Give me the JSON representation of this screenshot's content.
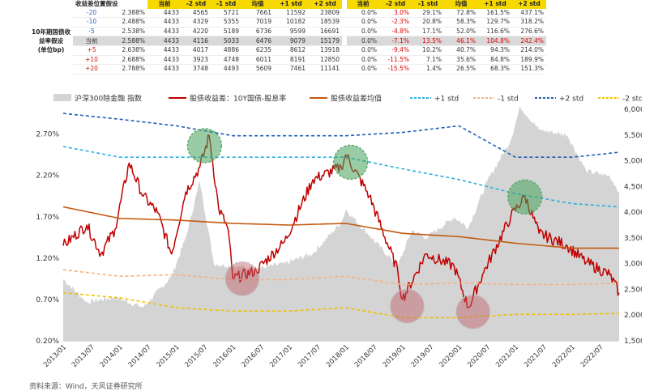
{
  "table": {
    "header_label": "收益差位置假设",
    "side_label": [
      "10年期国债收",
      "益率假设",
      "(单位bp)"
    ],
    "columns": [
      "当前",
      "-2 std",
      "-1 std",
      "均值",
      "+1 std",
      "+2 std",
      "当前",
      "-2 std",
      "-1 std",
      "均值",
      "+1 std",
      "+2 std"
    ],
    "rows": [
      {
        "shift": "-20",
        "yield": "2.388%",
        "levels": [
          "4433",
          "4565",
          "5721",
          "7661",
          "11592",
          "23809"
        ],
        "returns": [
          "0.0%",
          "3.0%",
          "29.1%",
          "72.8%",
          "161.5%",
          "437.1%"
        ]
      },
      {
        "shift": "-10",
        "yield": "2.488%",
        "levels": [
          "4433",
          "4329",
          "5355",
          "7019",
          "10182",
          "18539"
        ],
        "returns": [
          "0.0%",
          "-2.3%",
          "20.8%",
          "58.3%",
          "129.7%",
          "318.2%"
        ]
      },
      {
        "shift": "-5",
        "yield": "2.538%",
        "levels": [
          "4433",
          "4220",
          "5189",
          "6736",
          "9599",
          "16691"
        ],
        "returns": [
          "0.0%",
          "-4.8%",
          "17.1%",
          "52.0%",
          "116.6%",
          "276.6%"
        ]
      },
      {
        "shift": "当前",
        "yield": "2.588%",
        "levels": [
          "4433",
          "4116",
          "5033",
          "6476",
          "9079",
          "15179"
        ],
        "returns": [
          "0.0%",
          "-7.1%",
          "13.5%",
          "46.1%",
          "104.8%",
          "242.4%"
        ]
      },
      {
        "shift": "+5",
        "yield": "2.638%",
        "levels": [
          "4433",
          "4017",
          "4886",
          "6235",
          "8612",
          "13918"
        ],
        "returns": [
          "0.0%",
          "-9.4%",
          "10.2%",
          "40.7%",
          "94.3%",
          "214.0%"
        ]
      },
      {
        "shift": "+10",
        "yield": "2.688%",
        "levels": [
          "4433",
          "3923",
          "4748",
          "6011",
          "8191",
          "12850"
        ],
        "returns": [
          "0.0%",
          "-11.5%",
          "7.1%",
          "35.6%",
          "84.8%",
          "189.9%"
        ]
      },
      {
        "shift": "+20",
        "yield": "2.788%",
        "levels": [
          "4433",
          "3748",
          "4493",
          "5609",
          "7461",
          "11141"
        ],
        "returns": [
          "0.0%",
          "-15.5%",
          "1.4%",
          "26.5%",
          "68.3%",
          "151.3%"
        ]
      }
    ]
  },
  "chart_data": {
    "type": "line",
    "series": [
      {
        "name": "沪深300除金融 指数",
        "kind": "area",
        "axis": "right",
        "color": "#d4d4d4",
        "points": [
          [
            "2013-01",
            2700
          ],
          [
            "2013-06",
            2250
          ],
          [
            "2013-12",
            2350
          ],
          [
            "2014-06",
            2150
          ],
          [
            "2014-12",
            2750
          ],
          [
            "2015-03",
            3500
          ],
          [
            "2015-06",
            4600
          ],
          [
            "2015-09",
            3000
          ],
          [
            "2016-01",
            2950
          ],
          [
            "2016-06",
            2900
          ],
          [
            "2016-12",
            3000
          ],
          [
            "2017-06",
            3200
          ],
          [
            "2017-12",
            3800
          ],
          [
            "2018-01",
            4050
          ],
          [
            "2018-06",
            3550
          ],
          [
            "2018-12",
            2950
          ],
          [
            "2019-03",
            3650
          ],
          [
            "2019-06",
            3500
          ],
          [
            "2019-12",
            3900
          ],
          [
            "2020-03",
            3700
          ],
          [
            "2020-07",
            4600
          ],
          [
            "2020-12",
            5400
          ],
          [
            "2021-02",
            6050
          ],
          [
            "2021-06",
            5600
          ],
          [
            "2021-12",
            5500
          ],
          [
            "2022-04",
            4800
          ],
          [
            "2022-09",
            4700
          ],
          [
            "2022-11",
            4400
          ]
        ]
      },
      {
        "name": "股债收益差：10Y国债-股息率",
        "kind": "line",
        "axis": "left",
        "color": "#c00000",
        "points": [
          [
            "2013-01",
            1.35
          ],
          [
            "2013-06",
            1.6
          ],
          [
            "2013-09",
            1.25
          ],
          [
            "2013-12",
            1.55
          ],
          [
            "2014-03",
            2.35
          ],
          [
            "2014-06",
            1.95
          ],
          [
            "2014-09",
            1.75
          ],
          [
            "2014-12",
            1.25
          ],
          [
            "2015-03",
            2.0
          ],
          [
            "2015-06",
            2.3
          ],
          [
            "2015-08",
            2.68
          ],
          [
            "2015-10",
            1.8
          ],
          [
            "2015-12",
            1.55
          ],
          [
            "2016-01",
            0.95
          ],
          [
            "2016-06",
            1.05
          ],
          [
            "2016-12",
            1.4
          ],
          [
            "2017-06",
            2.15
          ],
          [
            "2017-12",
            2.3
          ],
          [
            "2018-01",
            2.45
          ],
          [
            "2018-06",
            1.95
          ],
          [
            "2018-12",
            1.05
          ],
          [
            "2019-01",
            0.7
          ],
          [
            "2019-06",
            1.25
          ],
          [
            "2019-12",
            1.1
          ],
          [
            "2020-03",
            0.6
          ],
          [
            "2020-06",
            1.0
          ],
          [
            "2020-12",
            1.7
          ],
          [
            "2021-03",
            1.95
          ],
          [
            "2021-06",
            1.5
          ],
          [
            "2021-12",
            1.35
          ],
          [
            "2022-04",
            1.15
          ],
          [
            "2022-09",
            1.0
          ],
          [
            "2022-11",
            0.78
          ]
        ]
      },
      {
        "name": "股债收益差均值",
        "kind": "line",
        "axis": "left",
        "color": "#c55a11",
        "points": [
          [
            "2013-01",
            1.82
          ],
          [
            "2014-01",
            1.68
          ],
          [
            "2015-01",
            1.66
          ],
          [
            "2016-01",
            1.62
          ],
          [
            "2017-01",
            1.6
          ],
          [
            "2018-01",
            1.62
          ],
          [
            "2019-01",
            1.5
          ],
          [
            "2020-01",
            1.46
          ],
          [
            "2021-01",
            1.38
          ],
          [
            "2022-01",
            1.32
          ],
          [
            "2022-11",
            1.32
          ]
        ]
      },
      {
        "name": "+1 std",
        "kind": "dashed",
        "axis": "left",
        "color": "#2ab0e0",
        "points": [
          [
            "2013-01",
            2.55
          ],
          [
            "2014-01",
            2.42
          ],
          [
            "2015-01",
            2.42
          ],
          [
            "2016-01",
            2.42
          ],
          [
            "2017-01",
            2.42
          ],
          [
            "2018-01",
            2.42
          ],
          [
            "2019-01",
            2.28
          ],
          [
            "2020-01",
            2.15
          ],
          [
            "2021-01",
            1.98
          ],
          [
            "2022-01",
            1.86
          ],
          [
            "2022-11",
            1.82
          ]
        ]
      },
      {
        "name": "-1 std",
        "kind": "dashed",
        "axis": "left",
        "color": "#f4b183",
        "points": [
          [
            "2013-01",
            1.06
          ],
          [
            "2014-01",
            0.98
          ],
          [
            "2015-01",
            1.0
          ],
          [
            "2016-01",
            0.94
          ],
          [
            "2017-01",
            0.94
          ],
          [
            "2018-01",
            0.98
          ],
          [
            "2019-01",
            0.88
          ],
          [
            "2020-01",
            0.9
          ],
          [
            "2021-01",
            0.88
          ],
          [
            "2022-01",
            0.88
          ],
          [
            "2022-11",
            0.9
          ]
        ]
      },
      {
        "name": "+2 std",
        "kind": "dashed",
        "axis": "left",
        "color": "#1f5fb4",
        "points": [
          [
            "2013-01",
            2.95
          ],
          [
            "2014-01",
            2.88
          ],
          [
            "2015-01",
            2.8
          ],
          [
            "2016-01",
            2.68
          ],
          [
            "2017-01",
            2.68
          ],
          [
            "2018-01",
            2.68
          ],
          [
            "2019-01",
            2.72
          ],
          [
            "2020-01",
            2.8
          ],
          [
            "2021-01",
            2.42
          ],
          [
            "2022-01",
            2.42
          ],
          [
            "2022-11",
            2.48
          ]
        ]
      },
      {
        "name": "-2 std",
        "kind": "dashed",
        "axis": "left",
        "color": "#f0c000",
        "points": [
          [
            "2013-01",
            0.78
          ],
          [
            "2014-01",
            0.72
          ],
          [
            "2015-01",
            0.6
          ],
          [
            "2016-01",
            0.56
          ],
          [
            "2017-01",
            0.56
          ],
          [
            "2018-01",
            0.6
          ],
          [
            "2019-01",
            0.48
          ],
          [
            "2020-01",
            0.48
          ],
          [
            "2021-01",
            0.52
          ],
          [
            "2022-01",
            0.52
          ],
          [
            "2022-11",
            0.53
          ]
        ]
      }
    ],
    "highlights": [
      {
        "kind": "top",
        "date": "2015-07",
        "value": 2.56
      },
      {
        "kind": "top",
        "date": "2018-02",
        "value": 2.36
      },
      {
        "kind": "top",
        "date": "2021-03",
        "value": 1.94
      },
      {
        "kind": "bottom",
        "date": "2016-03",
        "value": 0.95
      },
      {
        "kind": "bottom",
        "date": "2019-02",
        "value": 0.62
      },
      {
        "kind": "bottom",
        "date": "2020-04",
        "value": 0.55
      }
    ],
    "left_ticks": [
      "0.20%",
      "0.70%",
      "1.20%",
      "1.70%",
      "2.20%",
      "2.70%"
    ],
    "left_tick_values": [
      0.2,
      0.7,
      1.2,
      1.7,
      2.2,
      2.7
    ],
    "right_ticks": [
      "1,500",
      "2,000",
      "2,500",
      "3,000",
      "3,500",
      "4,000",
      "4,500",
      "5,000",
      "5,500",
      "6,000"
    ],
    "right_tick_values": [
      1500,
      2000,
      2500,
      3000,
      3500,
      4000,
      4500,
      5000,
      5500,
      6000
    ],
    "x_ticks": [
      "2013/01",
      "2013/07",
      "2014/01",
      "2014/07",
      "2015/01",
      "2015/07",
      "2016/01",
      "2016/07",
      "2017/01",
      "2017/07",
      "2018/01",
      "2018/07",
      "2019/01",
      "2019/07",
      "2020/01",
      "2020/07",
      "2021/01",
      "2021/07",
      "2022/01",
      "2022/07"
    ],
    "left_range": [
      0.2,
      3.0
    ],
    "right_range": [
      1500,
      6000
    ],
    "x_range": [
      "2013-01",
      "2022-11"
    ],
    "legend_position": "top"
  },
  "source": "资料来源：Wind，天风证券研究所"
}
